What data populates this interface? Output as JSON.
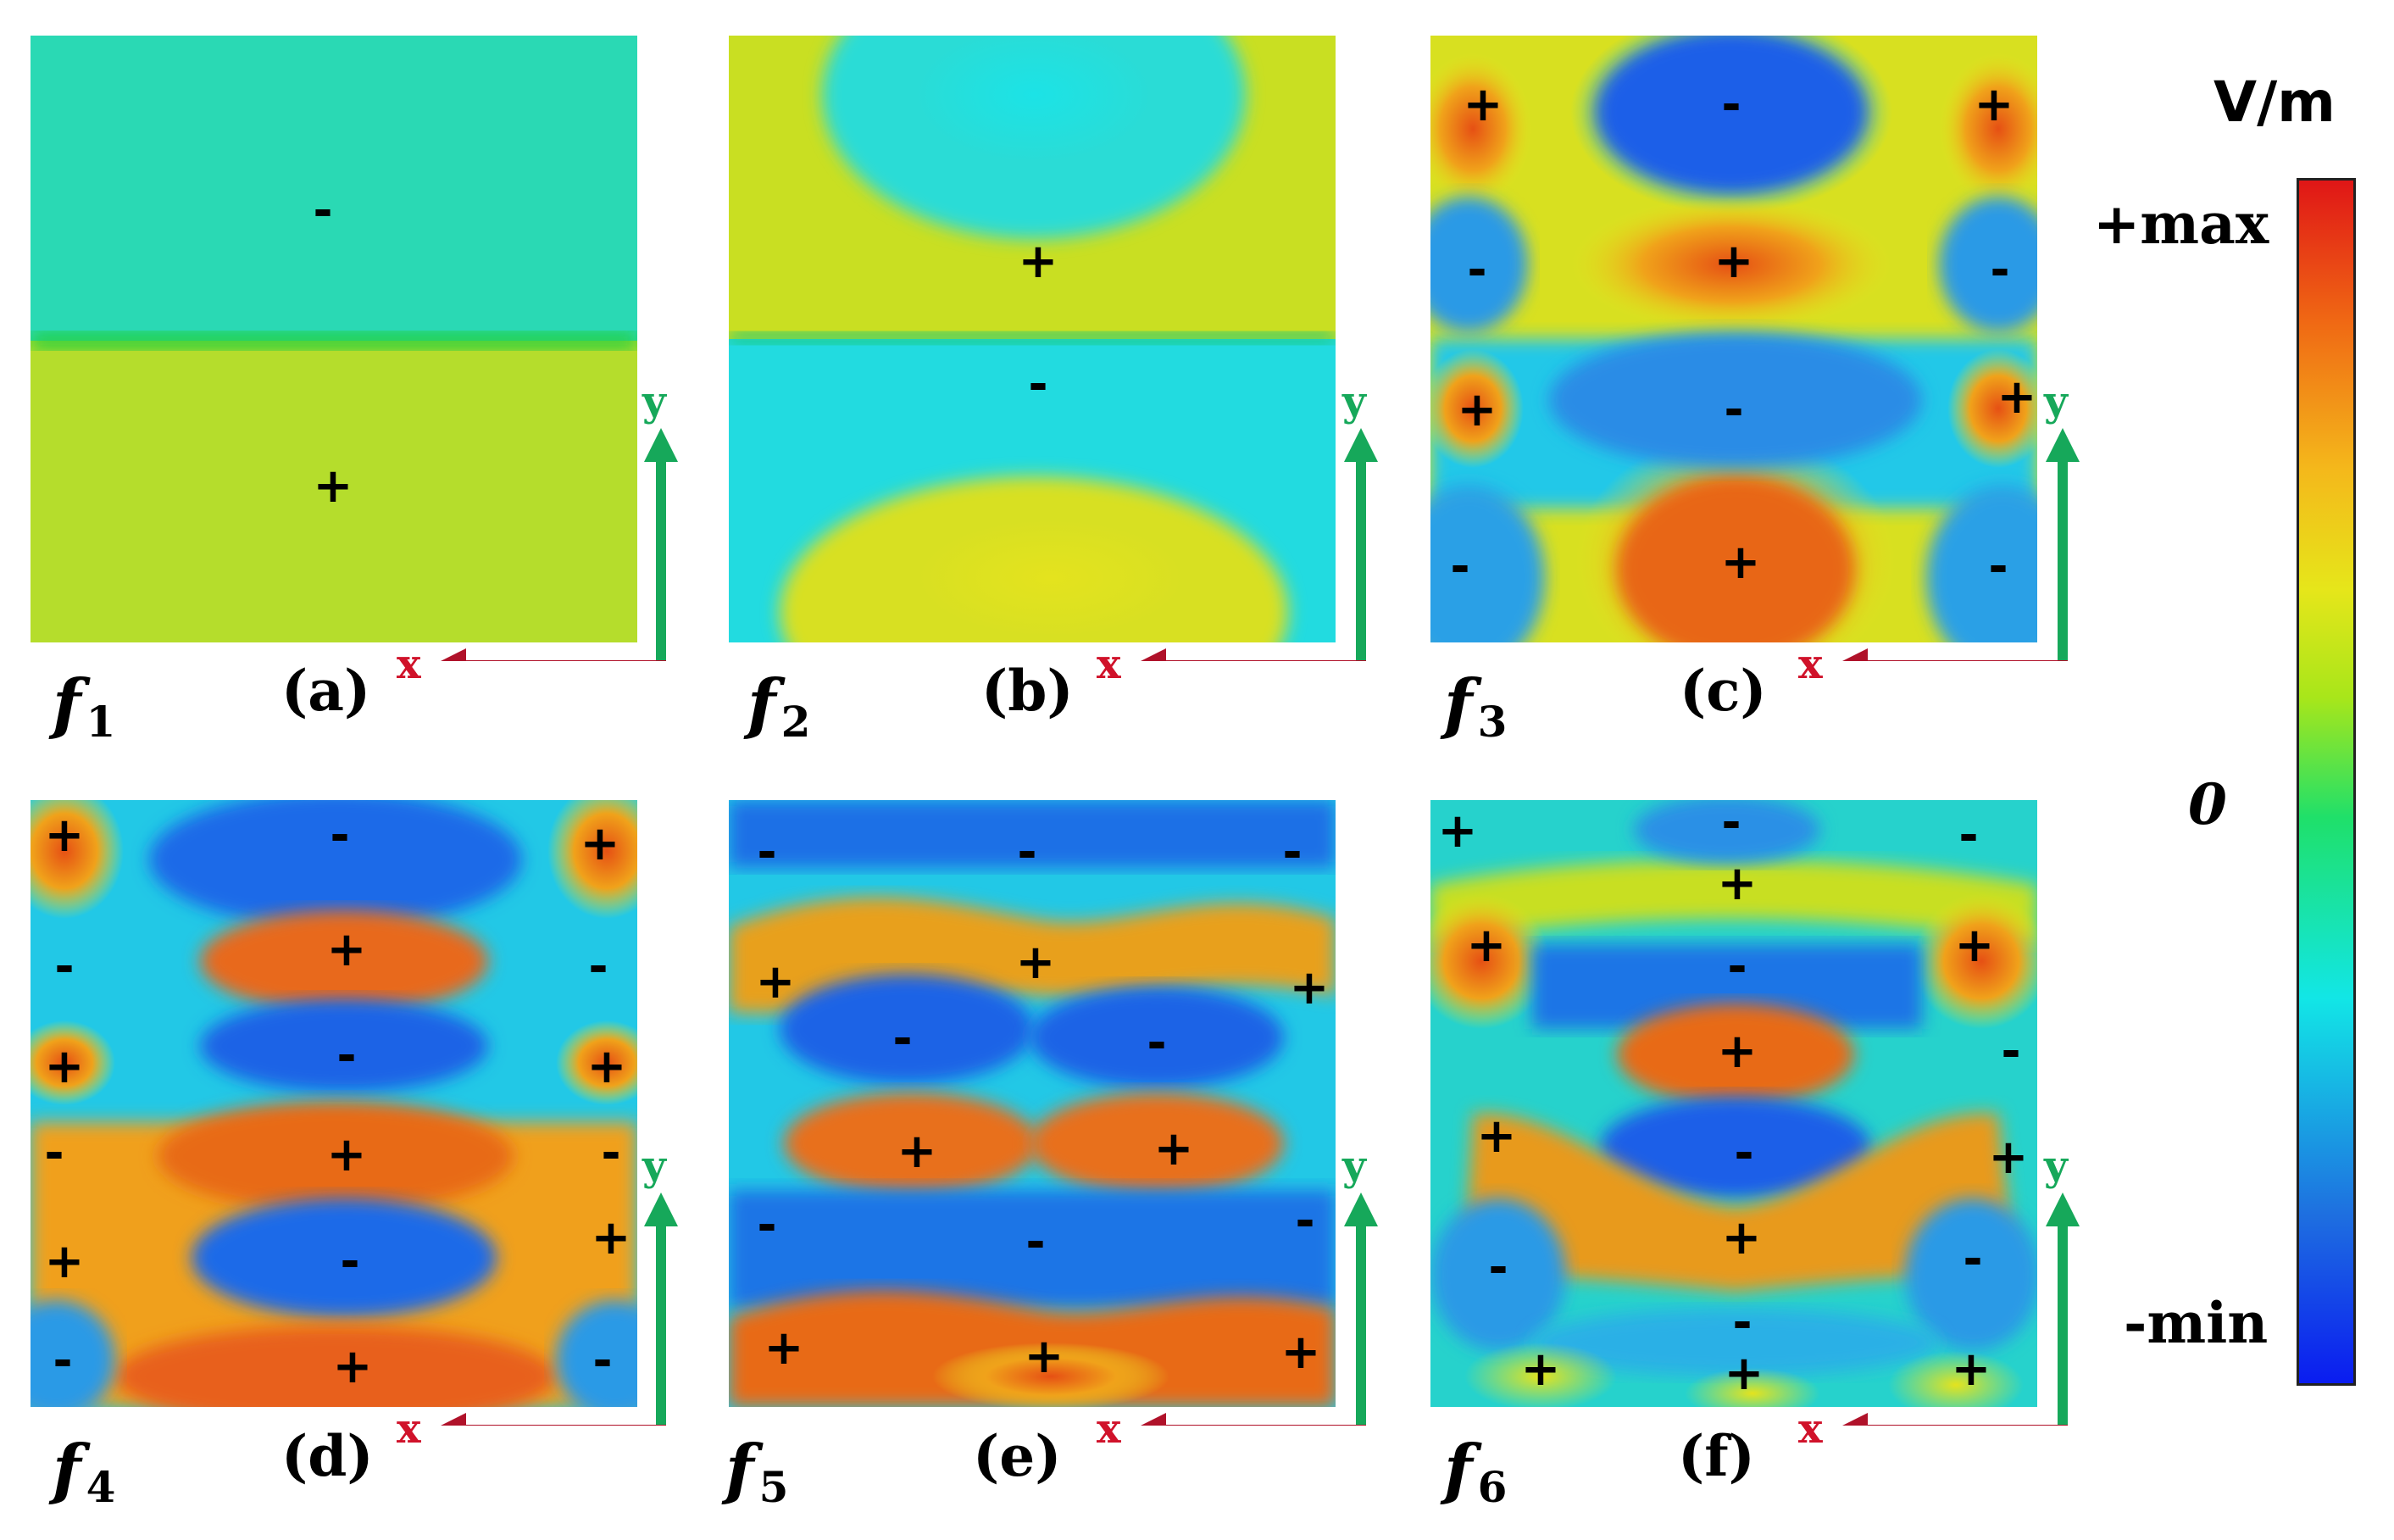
{
  "colorbar": {
    "title": "V/m",
    "max_label": "+max",
    "zero_label": "0",
    "min_label": "-min",
    "colors": [
      "#0a1cf0",
      "#1e6fe0",
      "#12cfe6",
      "#1fe06a",
      "#2fd32a",
      "#dde61a",
      "#f4c21b",
      "#f07a14",
      "#e02b16"
    ]
  },
  "axes": {
    "x_label": "x",
    "y_label": "y",
    "x_color": "#b0122a",
    "y_color": "#16a85a"
  },
  "panels": [
    {
      "id": "a",
      "mode": "f",
      "mode_index": "1",
      "label": "(a)"
    },
    {
      "id": "b",
      "mode": "f",
      "mode_index": "2",
      "label": "(b)"
    },
    {
      "id": "c",
      "mode": "f",
      "mode_index": "3",
      "label": "(c)"
    },
    {
      "id": "d",
      "mode": "f",
      "mode_index": "4",
      "label": "(d)"
    },
    {
      "id": "e",
      "mode": "f",
      "mode_index": "5",
      "label": "(e)"
    },
    {
      "id": "f",
      "mode": "f",
      "mode_index": "6",
      "label": "(f)"
    }
  ],
  "signs": {
    "plus": "+",
    "minus": "-"
  }
}
